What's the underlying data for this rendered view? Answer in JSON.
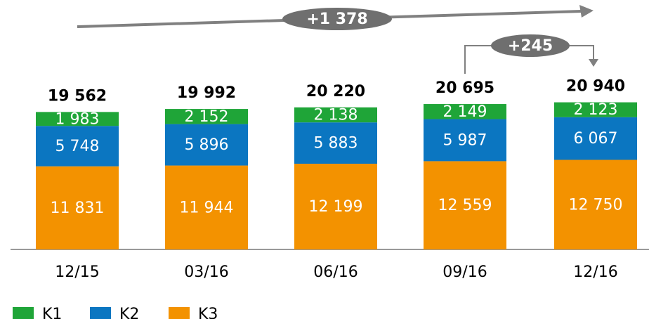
{
  "chart_data": {
    "type": "stacked_bar",
    "categories": [
      "12/15",
      "03/16",
      "06/16",
      "09/16",
      "12/16"
    ],
    "series": [
      {
        "name": "K3",
        "color": "#f39200",
        "values": [
          11831,
          11944,
          12199,
          12559,
          12750
        ],
        "value_labels": [
          "11 831",
          "11 944",
          "12 199",
          "12 559",
          "12 750"
        ]
      },
      {
        "name": "K2",
        "color": "#0b76c1",
        "values": [
          5748,
          5896,
          5883,
          5987,
          6067
        ],
        "value_labels": [
          "5 748",
          "5 896",
          "5 883",
          "5 987",
          "6 067"
        ]
      },
      {
        "name": "K1",
        "color": "#1fa538",
        "values": [
          1983,
          2152,
          2138,
          2149,
          2123
        ],
        "value_labels": [
          "1 983",
          "2 152",
          "2 138",
          "2 149",
          "2 123"
        ]
      }
    ],
    "totals": [
      19562,
      19992,
      20220,
      20695,
      20940
    ],
    "total_labels": [
      "19 562",
      "19 992",
      "20 220",
      "20 695",
      "20 940"
    ],
    "legend_order": [
      2,
      1,
      0
    ],
    "annotations": [
      {
        "text": "+1 378"
      },
      {
        "text": "+245"
      }
    ],
    "ylim": [
      0,
      35500
    ]
  }
}
